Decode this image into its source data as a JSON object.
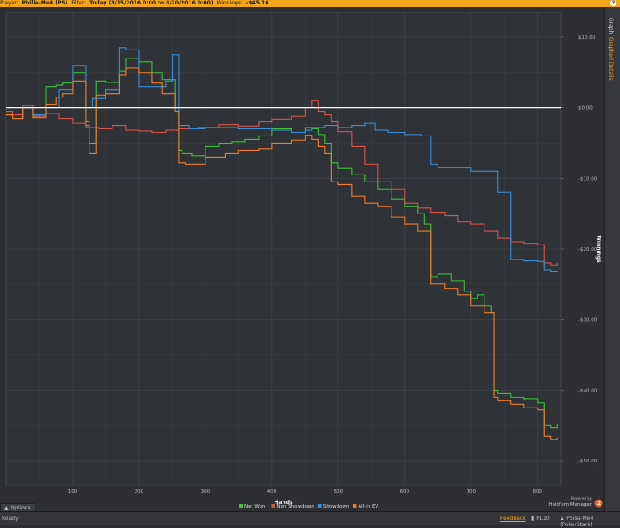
{
  "topbar": {
    "player_label": "Player:",
    "player_value": "Pbilia-Me4 (PS)",
    "filter_label": "Filter:",
    "filter_value": "Today (8/15/2016 0:00 to 8/20/2016 0:00)",
    "winnings_label": "Winnings:",
    "winnings_value": "-$45.16",
    "help_icon_text": "?"
  },
  "sidetabs": {
    "graph": "Graph",
    "graph_details": "Graphed Details"
  },
  "options_label": "Options",
  "statusbar": {
    "ready": "Ready",
    "feedback": "Feedback",
    "stake": "NL10",
    "player": "Pbilia-Me4 (PokerStars)"
  },
  "powered": {
    "by": "Powered by",
    "name": "Hold'em Manager",
    "badge": "2"
  },
  "colors": {
    "net_won": "#3cc23c",
    "non_showdown": "#d9534f",
    "showdown": "#3a8fd9",
    "allin_ev": "#ef7d2c",
    "zero_line": "#ffffff"
  },
  "chart_data": {
    "type": "line",
    "xlabel": "Hands",
    "ylabel": "Winnings",
    "xlim": [
      0,
      835
    ],
    "ylim": [
      -53.5,
      13.5
    ],
    "x_ticks": [
      100,
      200,
      300,
      400,
      500,
      600,
      700,
      800
    ],
    "y_ticks": [
      10,
      0,
      -10,
      -20,
      -30,
      -40,
      -50
    ],
    "y_tick_labels": [
      "$10.00",
      "$0.00",
      "-$10.00",
      "-$20.00",
      "-$30.00",
      "-$40.00",
      "-$50.00"
    ],
    "grid": true,
    "legend_position": "bottom-center",
    "series": [
      {
        "name": "Net Won",
        "color": "#3cc23c",
        "x": [
          0,
          10,
          25,
          40,
          50,
          60,
          75,
          85,
          100,
          120,
          125,
          135,
          150,
          170,
          180,
          200,
          220,
          235,
          255,
          260,
          265,
          280,
          300,
          320,
          340,
          360,
          380,
          400,
          430,
          450,
          460,
          470,
          480,
          490,
          500,
          520,
          540,
          560,
          580,
          600,
          620,
          630,
          640,
          650,
          670,
          690,
          700,
          710,
          720,
          730,
          735,
          740,
          760,
          780,
          800,
          810,
          820,
          830
        ],
        "y": [
          -1,
          -1.5,
          0,
          -1.2,
          -1,
          3,
          3.2,
          3.5,
          5,
          -2,
          -5,
          3.8,
          3.6,
          5.2,
          7,
          6.5,
          5,
          4,
          0,
          -6,
          -6.5,
          -6.8,
          -5.5,
          -5,
          -4.8,
          -4.5,
          -4,
          -3,
          -3.5,
          -2.8,
          -3,
          -3.8,
          -5,
          -7.8,
          -8.6,
          -9.5,
          -10.5,
          -11.5,
          -13,
          -14,
          -15,
          -16.5,
          -24,
          -23.5,
          -24.5,
          -26,
          -27,
          -26.5,
          -28,
          -29,
          -40,
          -40.5,
          -41,
          -41.2,
          -41.8,
          -45,
          -45.3,
          -44.8
        ]
      },
      {
        "name": "Non Showdown",
        "color": "#d9534f",
        "x": [
          0,
          10,
          25,
          40,
          60,
          80,
          100,
          120,
          140,
          160,
          180,
          200,
          220,
          240,
          260,
          290,
          320,
          350,
          380,
          400,
          430,
          450,
          460,
          470,
          480,
          490,
          500,
          520,
          540,
          560,
          580,
          600,
          620,
          640,
          660,
          680,
          700,
          720,
          740,
          760,
          780,
          800,
          810,
          820,
          830
        ],
        "y": [
          -0.5,
          -1,
          0.3,
          -1.2,
          -0.8,
          -1.5,
          -2.2,
          -2.8,
          -3,
          -2.5,
          -3.2,
          -3.3,
          -3.5,
          -3.2,
          -3,
          -2.8,
          -2.4,
          -2.6,
          -2,
          -1.6,
          -1.2,
          0,
          1,
          -0.5,
          -1,
          -2,
          -3.4,
          -5.5,
          -8,
          -10.5,
          -11.5,
          -13.5,
          -14.2,
          -14.8,
          -15.3,
          -16.2,
          -16.5,
          -17.5,
          -18.5,
          -19,
          -19.2,
          -19.4,
          -22,
          -22.3,
          -22
        ]
      },
      {
        "name": "Showdown",
        "color": "#3a8fd9",
        "x": [
          0,
          40,
          60,
          80,
          100,
          120,
          130,
          150,
          170,
          180,
          200,
          220,
          240,
          250,
          260,
          275,
          300,
          350,
          400,
          430,
          450,
          460,
          480,
          500,
          520,
          540,
          555,
          575,
          600,
          625,
          640,
          650,
          700,
          740,
          760,
          780,
          800,
          810,
          820,
          830
        ],
        "y": [
          0,
          -1,
          0,
          2.5,
          6,
          0,
          1.3,
          2.5,
          8.5,
          8.2,
          3,
          3,
          3.8,
          7.5,
          -2.5,
          -3,
          -2.8,
          -3,
          -3.2,
          -3.5,
          -3.2,
          -2.8,
          -2.5,
          -2.8,
          -2.5,
          -2.2,
          -3.2,
          -3.5,
          -3.8,
          -4,
          -8,
          -8.5,
          -9,
          -12,
          -21.5,
          -21.7,
          -21.8,
          -23,
          -23.2,
          -23.3
        ]
      },
      {
        "name": "All-in EV",
        "color": "#ef7d2c",
        "x": [
          0,
          10,
          25,
          40,
          60,
          75,
          85,
          100,
          120,
          125,
          135,
          150,
          170,
          180,
          200,
          220,
          235,
          255,
          260,
          270,
          280,
          300,
          330,
          350,
          380,
          400,
          430,
          450,
          460,
          470,
          480,
          490,
          500,
          520,
          540,
          560,
          580,
          600,
          620,
          640,
          660,
          680,
          700,
          720,
          735,
          740,
          760,
          780,
          800,
          810,
          820,
          830
        ],
        "y": [
          -1,
          -1.5,
          0,
          -1.4,
          0.5,
          1.5,
          2,
          3.8,
          -2.5,
          -6.5,
          1.8,
          2,
          4.6,
          5.6,
          5,
          3.5,
          2,
          -0.5,
          -7.8,
          -8,
          -8,
          -7,
          -6.5,
          -6,
          -5.8,
          -5,
          -4.6,
          -3.9,
          -4.5,
          -5.5,
          -6.5,
          -10.5,
          -10.9,
          -12.5,
          -13.5,
          -14,
          -15.5,
          -16.5,
          -17.5,
          -25,
          -25.6,
          -26.5,
          -28,
          -29,
          -41,
          -41.5,
          -42,
          -42.5,
          -42.8,
          -46.5,
          -47,
          -46.7
        ]
      }
    ]
  }
}
